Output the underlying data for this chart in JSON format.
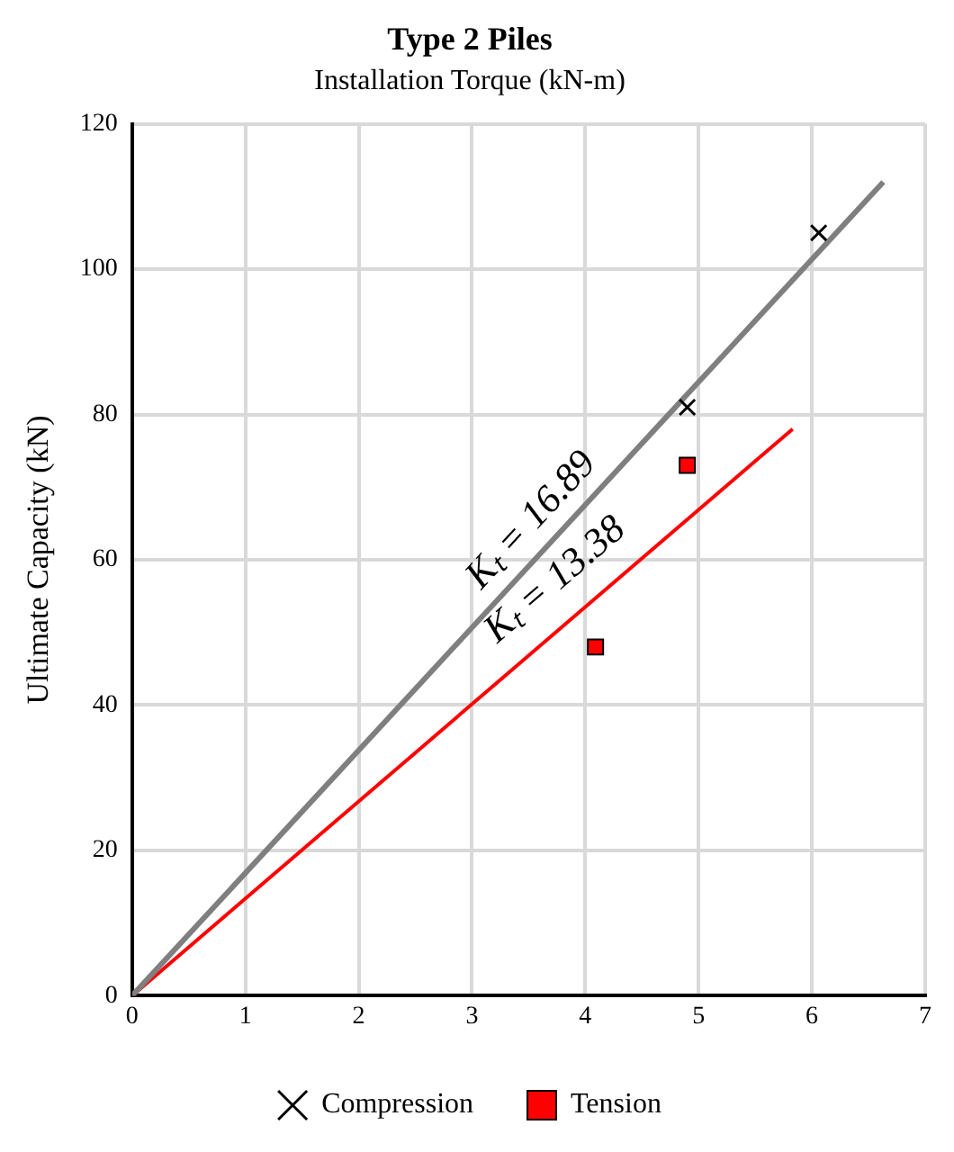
{
  "chart_data": {
    "type": "scatter",
    "title": "Type 2 Piles",
    "xlabel": "Installation Torque (kN-m)",
    "ylabel": "Ultimate Capacity (kN)",
    "xlim": [
      0,
      7
    ],
    "xticks": [
      0,
      1,
      2,
      3,
      4,
      5,
      6,
      7
    ],
    "ylim": [
      0,
      120
    ],
    "yticks": [
      0,
      20,
      40,
      60,
      80,
      100,
      120
    ],
    "grid": true,
    "legend": "bottom",
    "series": [
      {
        "name": "Compression",
        "color": "#000000",
        "marker": "cross",
        "x": [
          4.9,
          6.06
        ],
        "values": [
          81,
          105
        ]
      },
      {
        "name": "Tension",
        "color": "#ff0000",
        "marker": "square",
        "x": [
          4.09,
          4.9
        ],
        "values": [
          48,
          73
        ]
      },
      {
        "type": "line",
        "color": "#7f7f7f",
        "marker": "none",
        "x": [
          0,
          6.63
        ],
        "values": [
          0,
          112
        ]
      },
      {
        "type": "line",
        "color": "#ff0000",
        "marker": "none",
        "x": [
          0,
          5.83
        ],
        "values": [
          0,
          78
        ]
      }
    ],
    "annotations": [
      "Kₜ = 16.89",
      "Kₜ = 13.38"
    ]
  }
}
